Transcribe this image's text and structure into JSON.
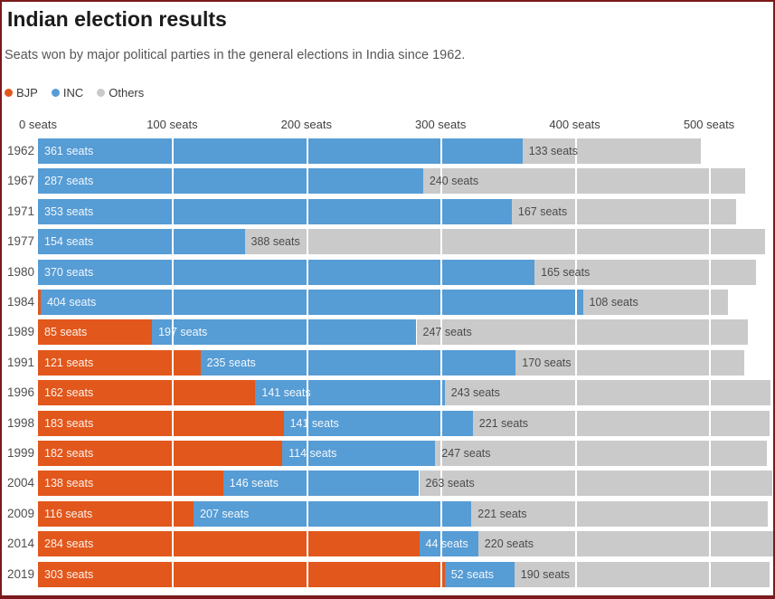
{
  "header": {
    "title": "Indian election results",
    "subtitle": "Seats won by major political parties in the general elections in India since 1962."
  },
  "legend": {
    "items": [
      {
        "label": "BJP",
        "color": "#e2571b"
      },
      {
        "label": "INC",
        "color": "#569cd5"
      },
      {
        "label": "Others",
        "color": "#cacaca"
      }
    ]
  },
  "colors": {
    "frame_border": "#7a1a1c",
    "background": "#ffffff",
    "bjp_orange": "#e2571b",
    "inc_blue": "#569cd5",
    "others_gray": "#cacaca",
    "value_label_on_color": "#ffffff",
    "value_label_on_gray": "#4a4a4a",
    "gridline": "#ffffff"
  },
  "chart_data": {
    "type": "bar",
    "orientation": "horizontal",
    "stacked": true,
    "title": "Indian election results",
    "subtitle": "Seats won by major political parties in the general elections in India since 1962.",
    "unit": "seats",
    "categories": [
      "1962",
      "1967",
      "1971",
      "1977",
      "1980",
      "1984",
      "1989",
      "1991",
      "1996",
      "1998",
      "1999",
      "2004",
      "2009",
      "2014",
      "2019"
    ],
    "series": [
      {
        "name": "BJP",
        "color": "#e2571b",
        "values": [
          null,
          null,
          null,
          null,
          null,
          2,
          85,
          121,
          162,
          183,
          182,
          138,
          116,
          284,
          303
        ]
      },
      {
        "name": "INC",
        "color": "#569cd5",
        "values": [
          361,
          287,
          353,
          154,
          370,
          404,
          197,
          235,
          141,
          141,
          114,
          146,
          207,
          44,
          52
        ]
      },
      {
        "name": "Others",
        "color": "#cacaca",
        "values": [
          133,
          240,
          167,
          388,
          165,
          108,
          247,
          170,
          243,
          221,
          247,
          263,
          221,
          220,
          190
        ]
      }
    ],
    "x_axis": {
      "tick_values": [
        0,
        100,
        200,
        300,
        400,
        500
      ],
      "tick_labels": [
        "0 seats",
        "100 seats",
        "200 seats",
        "300 seats",
        "400 seats",
        "500 seats"
      ],
      "range": [
        0,
        550
      ],
      "gridlines": true
    },
    "value_label_suffix": " seats",
    "min_value_for_label": 20,
    "legend_position": "top-left",
    "grid": "white vertical lines over bars at each 100 seats"
  }
}
